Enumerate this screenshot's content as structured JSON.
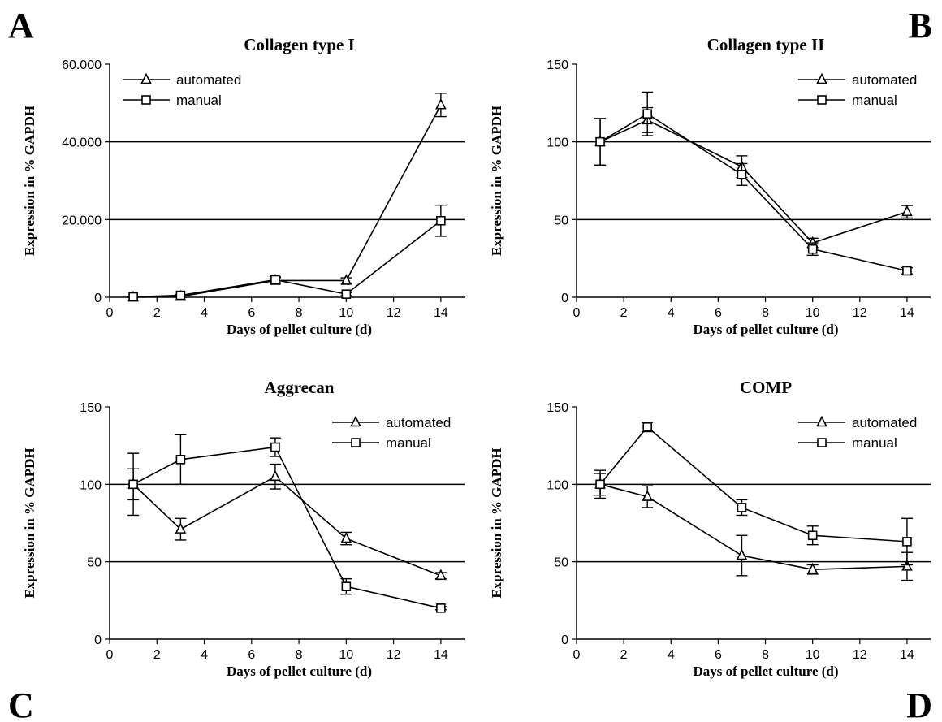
{
  "chart_data": [
    {
      "type": "line",
      "panel_letter": "A",
      "title": "Collagen type I",
      "xlabel": "Days of pellet culture (d)",
      "ylabel": "Expression in % GAPDH",
      "xlim": [
        0,
        15
      ],
      "ylim": [
        0,
        60000
      ],
      "xticks": [
        0,
        2,
        4,
        6,
        8,
        10,
        12,
        14
      ],
      "yticks": [
        0,
        20000,
        40000,
        60000
      ],
      "ytick_labels": [
        "0",
        "20.000",
        "40.000",
        "60.000"
      ],
      "grid_y": [
        20000,
        40000
      ],
      "legend_position": "top-left",
      "x": [
        1,
        3,
        7,
        10,
        14
      ],
      "series": [
        {
          "name": "automated",
          "marker": "triangle",
          "values": [
            0,
            200,
            4300,
            4300,
            49500
          ],
          "errors": [
            100,
            200,
            700,
            700,
            3000
          ]
        },
        {
          "name": "manual",
          "marker": "square",
          "values": [
            100,
            500,
            4500,
            800,
            19700
          ],
          "errors": [
            100,
            200,
            800,
            400,
            4000
          ]
        }
      ]
    },
    {
      "type": "line",
      "panel_letter": "B",
      "title": "Collagen type II",
      "xlabel": "Days of pellet culture (d)",
      "ylabel": "Expression in % GAPDH",
      "xlim": [
        0,
        15
      ],
      "ylim": [
        0,
        150
      ],
      "xticks": [
        0,
        2,
        4,
        6,
        8,
        10,
        12,
        14
      ],
      "yticks": [
        0,
        50,
        100,
        150
      ],
      "ytick_labels": [
        "0",
        "50",
        "100",
        "150"
      ],
      "grid_y": [
        50,
        100
      ],
      "legend_position": "top-right",
      "x": [
        1,
        3,
        7,
        10,
        14
      ],
      "series": [
        {
          "name": "automated",
          "marker": "triangle",
          "values": [
            100,
            114,
            84,
            35,
            55
          ],
          "errors": [
            15,
            8,
            7,
            3,
            4
          ]
        },
        {
          "name": "manual",
          "marker": "square",
          "values": [
            100,
            118,
            79,
            31,
            17
          ],
          "errors": [
            15,
            14,
            7,
            4,
            2
          ]
        }
      ]
    },
    {
      "type": "line",
      "panel_letter": "C",
      "title": "Aggrecan",
      "xlabel": "Days of pellet culture (d)",
      "ylabel": "Expression in % GAPDH",
      "xlim": [
        0,
        15
      ],
      "ylim": [
        0,
        150
      ],
      "xticks": [
        0,
        2,
        4,
        6,
        8,
        10,
        12,
        14
      ],
      "yticks": [
        0,
        50,
        100,
        150
      ],
      "ytick_labels": [
        "0",
        "50",
        "100",
        "150"
      ],
      "grid_y": [
        50,
        100
      ],
      "legend_position": "top-right",
      "x": [
        1,
        3,
        7,
        10,
        14
      ],
      "series": [
        {
          "name": "automated",
          "marker": "triangle",
          "values": [
            100,
            71,
            105,
            65,
            41
          ],
          "errors": [
            10,
            7,
            8,
            4,
            2
          ]
        },
        {
          "name": "manual",
          "marker": "square",
          "values": [
            100,
            116,
            124,
            34,
            20
          ],
          "errors": [
            20,
            16,
            6,
            5,
            1
          ]
        }
      ]
    },
    {
      "type": "line",
      "panel_letter": "D",
      "title": "COMP",
      "xlabel": "Days of pellet culture (d)",
      "ylabel": "Expression in % GAPDH",
      "xlim": [
        0,
        15
      ],
      "ylim": [
        0,
        150
      ],
      "xticks": [
        0,
        2,
        4,
        6,
        8,
        10,
        12,
        14
      ],
      "yticks": [
        0,
        50,
        100,
        150
      ],
      "ytick_labels": [
        "0",
        "50",
        "100",
        "150"
      ],
      "grid_y": [
        50,
        100
      ],
      "legend_position": "top-right",
      "x": [
        1,
        3,
        7,
        10,
        14
      ],
      "series": [
        {
          "name": "automated",
          "marker": "triangle",
          "values": [
            100,
            92,
            54,
            45,
            47
          ],
          "errors": [
            9,
            7,
            13,
            3,
            9
          ]
        },
        {
          "name": "manual",
          "marker": "square",
          "values": [
            100,
            137,
            85,
            67,
            63
          ],
          "errors": [
            7,
            3,
            5,
            6,
            15
          ]
        }
      ]
    }
  ]
}
